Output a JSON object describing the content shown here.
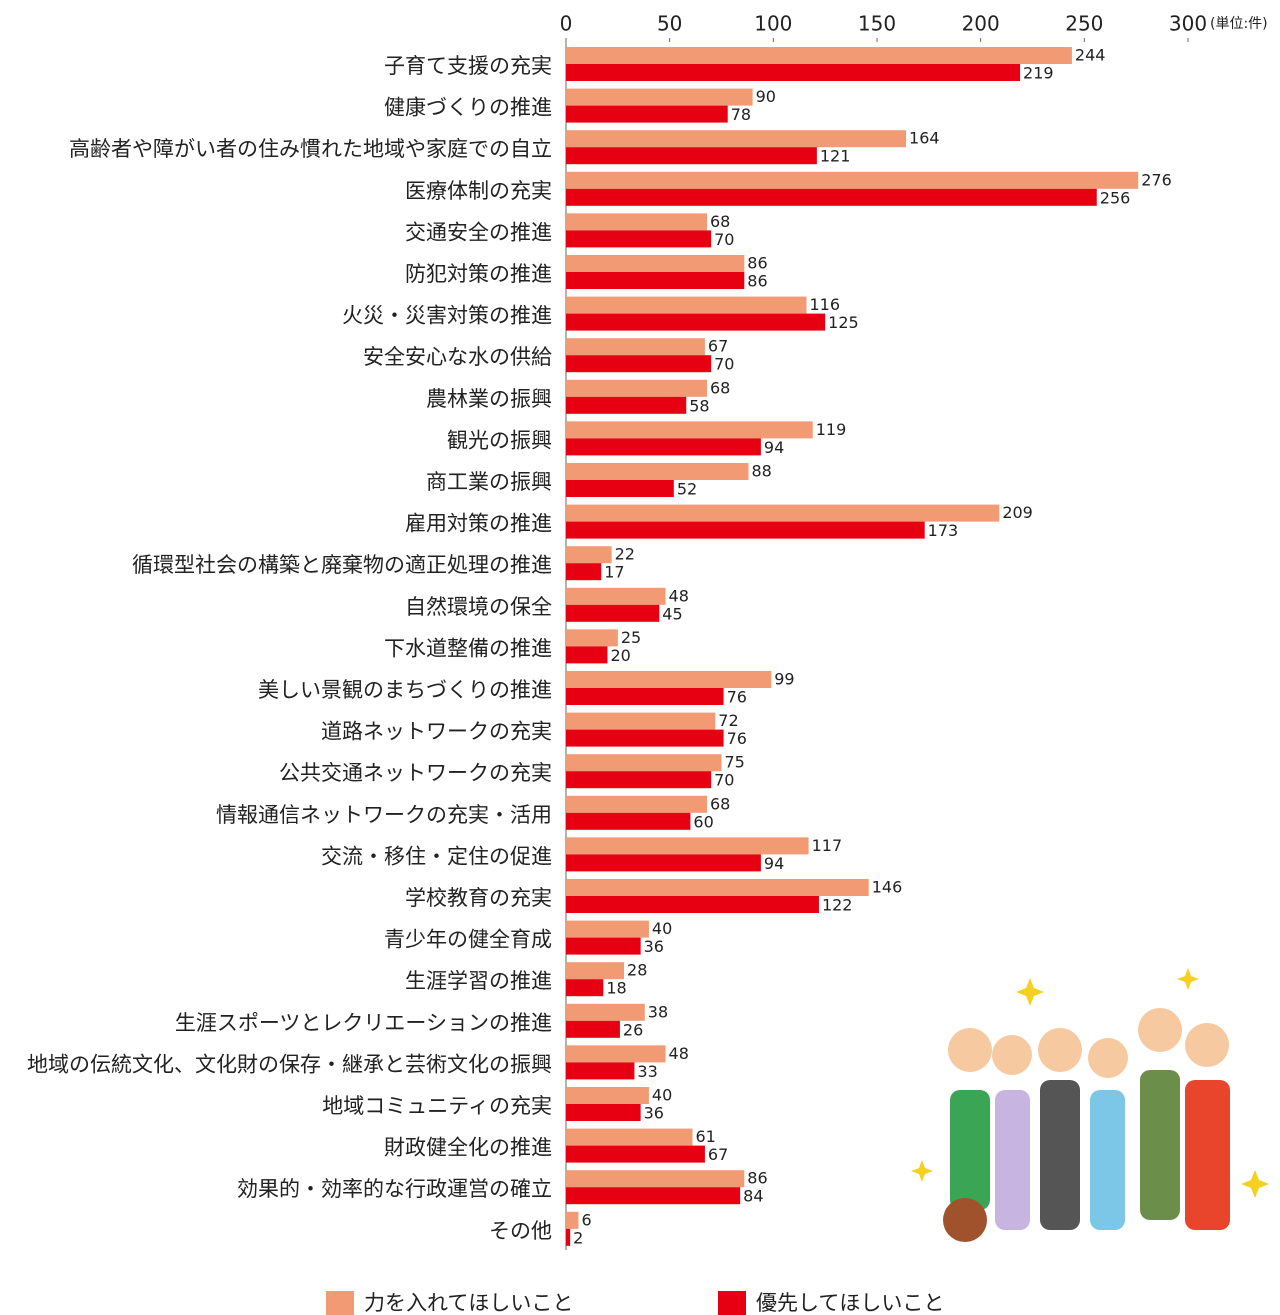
{
  "chart_data": {
    "type": "bar",
    "orientation": "horizontal",
    "unit": "(単位:件)",
    "categories": [
      "子育て支援の充実",
      "健康づくりの推進",
      "高齢者や障がい者の住み慣れた地域や家庭での自立",
      "医療体制の充実",
      "交通安全の推進",
      "防犯対策の推進",
      "火災・災害対策の推進",
      "安全安心な水の供給",
      "農林業の振興",
      "観光の振興",
      "商工業の振興",
      "雇用対策の推進",
      "循環型社会の構築と廃棄物の適正処理の推進",
      "自然環境の保全",
      "下水道整備の推進",
      "美しい景観のまちづくりの推進",
      "道路ネットワークの充実",
      "公共交通ネットワークの充実",
      "情報通信ネットワークの充実・活用",
      "交流・移住・定住の促進",
      "学校教育の充実",
      "青少年の健全育成",
      "生涯学習の推進",
      "生涯スポーツとレクリエーションの推進",
      "地域の伝統文化、文化財の保存・継承と芸術文化の振興",
      "地域コミュニティの充実",
      "財政健全化の推進",
      "効果的・効率的な行政運営の確立",
      "その他"
    ],
    "series": [
      {
        "name": "力を入れてほしいこと",
        "color": "#f19a74",
        "values": [
          244,
          90,
          164,
          276,
          68,
          86,
          116,
          67,
          68,
          119,
          88,
          209,
          22,
          48,
          25,
          99,
          72,
          75,
          68,
          117,
          146,
          40,
          28,
          38,
          48,
          40,
          61,
          86,
          6
        ]
      },
      {
        "name": "優先してほしいこと",
        "color": "#e60012",
        "values": [
          219,
          78,
          121,
          256,
          70,
          86,
          125,
          70,
          58,
          94,
          52,
          173,
          17,
          45,
          20,
          76,
          76,
          70,
          60,
          94,
          122,
          36,
          18,
          26,
          33,
          36,
          67,
          84,
          2
        ]
      }
    ],
    "xlim": [
      0,
      300
    ],
    "xticks": [
      0,
      50,
      100,
      150,
      200,
      250,
      300
    ]
  }
}
